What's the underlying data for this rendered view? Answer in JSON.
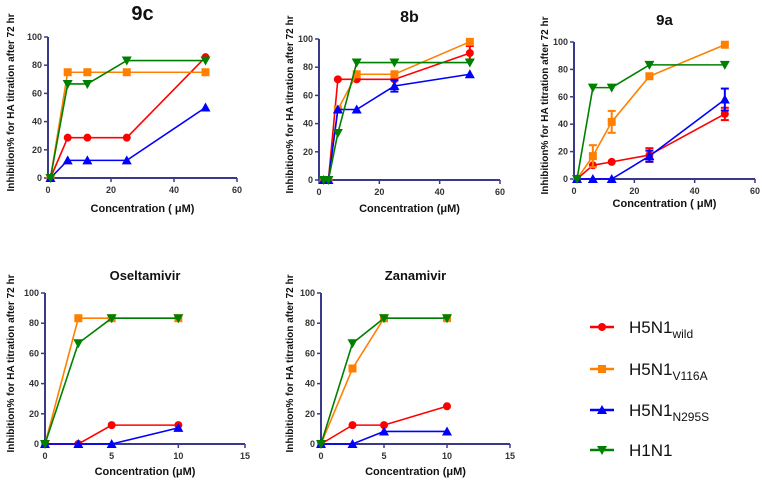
{
  "chart_data": {
    "type": "line",
    "legend_placement": "bottom-right",
    "legend": [
      {
        "name": "H5N1",
        "sub": "wild",
        "color": "#ff0000",
        "marker": "circle"
      },
      {
        "name": "H5N1",
        "sub": "V116A",
        "color": "#ff8000",
        "marker": "square"
      },
      {
        "name": "H5N1",
        "sub": "N295S",
        "color": "#0000ff",
        "marker": "triangle-up"
      },
      {
        "name": "H1N1",
        "sub": "",
        "color": "#008000",
        "marker": "triangle-down"
      }
    ],
    "panels": [
      {
        "title": "9c",
        "xlabel": "Concentration ( μM)",
        "ylabel": "Inhibition% for HA titration after 72 hr",
        "xlim": [
          0,
          60
        ],
        "ylim": [
          0,
          100
        ],
        "xticks": [
          0,
          20,
          40,
          60
        ],
        "yticks": [
          0,
          20,
          40,
          60,
          80,
          100
        ],
        "x": [
          0.78,
          6.25,
          12.5,
          25,
          50
        ],
        "series": [
          {
            "name": "H5N1 wild",
            "values": [
              0,
              28.6,
              28.6,
              28.6,
              85.7
            ]
          },
          {
            "name": "H5N1 V116A",
            "values": [
              0,
              75,
              75,
              75,
              75
            ]
          },
          {
            "name": "H5N1 N295S",
            "values": [
              0,
              12.5,
              12.5,
              12.5,
              50
            ]
          },
          {
            "name": "H1N1",
            "values": [
              0,
              66.7,
              66.7,
              83.3,
              83.3
            ]
          }
        ]
      },
      {
        "title": "8b",
        "xlabel": "Concentration (μM)",
        "ylabel": "Inhibition% for HA titration after 72 hr",
        "xlim": [
          0,
          60
        ],
        "ylim": [
          0,
          100
        ],
        "xticks": [
          0,
          20,
          40,
          60
        ],
        "yticks": [
          0,
          20,
          40,
          60,
          80,
          100
        ],
        "x": [
          1.56,
          3.125,
          6.25,
          12.5,
          25,
          50
        ],
        "series": [
          {
            "name": "H5N1 wild",
            "values": [
              0,
              0,
              71.4,
              71.4,
              71.4,
              90
            ],
            "errors": [
              0,
              0,
              0,
              0,
              0,
              5
            ]
          },
          {
            "name": "H5N1 V116A",
            "values": [
              0,
              0,
              50,
              75,
              75,
              98
            ]
          },
          {
            "name": "H5N1 N295S",
            "values": [
              0,
              0,
              50,
              50,
              66.7,
              75
            ],
            "errors": [
              0,
              0,
              0,
              0,
              4,
              0
            ]
          },
          {
            "name": "H1N1",
            "values": [
              0,
              0,
              33.3,
              83.3,
              83.3,
              83.3
            ]
          }
        ]
      },
      {
        "title": "9a",
        "xlabel": "Concentration ( μM)",
        "ylabel": "Inhibition% for HA titration after 72 hr",
        "xlim": [
          0,
          60
        ],
        "ylim": [
          0,
          100
        ],
        "xticks": [
          0,
          20,
          40,
          60
        ],
        "yticks": [
          0,
          20,
          40,
          60,
          80,
          100
        ],
        "x": [
          1,
          6.25,
          12.5,
          25,
          50
        ],
        "series": [
          {
            "name": "H5N1 wild",
            "values": [
              0,
              10,
              12.5,
              17.5,
              47.5
            ],
            "errors": [
              0,
              0,
              0,
              5,
              4.5
            ]
          },
          {
            "name": "H5N1 V116A",
            "values": [
              0,
              16.7,
              41.7,
              75,
              98
            ],
            "errors": [
              0,
              8,
              8,
              0,
              0
            ]
          },
          {
            "name": "H5N1 N295S",
            "values": [
              0,
              0,
              0,
              16.7,
              58
            ],
            "errors": [
              0,
              0,
              0,
              4,
              8
            ]
          },
          {
            "name": "H1N1",
            "values": [
              0,
              66.7,
              66.7,
              83.3,
              83.3
            ]
          }
        ]
      },
      {
        "title": "Oseltamivir",
        "xlabel": "Concentration (μM)",
        "ylabel": "Inhibition% for HA titration after 72 hr",
        "xlim": [
          0,
          15
        ],
        "ylim": [
          0,
          100
        ],
        "xticks": [
          0,
          5,
          10,
          15
        ],
        "yticks": [
          0,
          20,
          40,
          60,
          80,
          100
        ],
        "x": [
          0,
          2.5,
          5,
          10
        ],
        "series": [
          {
            "name": "H5N1 wild",
            "values": [
              0,
              0,
              12.5,
              12.5
            ]
          },
          {
            "name": "H5N1 V116A",
            "values": [
              0,
              83.3,
              83.3,
              83.3
            ]
          },
          {
            "name": "H5N1 N295S",
            "values": [
              0,
              0,
              0,
              10.7
            ]
          },
          {
            "name": "H1N1",
            "values": [
              0,
              66.7,
              83.3,
              83.3
            ]
          }
        ]
      },
      {
        "title": "Zanamivir",
        "xlabel": "Concentration (μM)",
        "ylabel": "Inhibition% for HA titration after 72 hr",
        "xlim": [
          0,
          15
        ],
        "ylim": [
          0,
          100
        ],
        "xticks": [
          0,
          5,
          10,
          15
        ],
        "yticks": [
          0,
          20,
          40,
          60,
          80,
          100
        ],
        "x": [
          0,
          2.5,
          5,
          10
        ],
        "series": [
          {
            "name": "H5N1 wild",
            "values": [
              0,
              12.5,
              12.5,
              25
            ]
          },
          {
            "name": "H5N1 V116A",
            "values": [
              0,
              50,
              83.3,
              83.3
            ]
          },
          {
            "name": "H5N1 N295S",
            "values": [
              0,
              0,
              8.3,
              8.3
            ]
          },
          {
            "name": "H1N1",
            "values": [
              0,
              66.7,
              83.3,
              83.3
            ]
          }
        ]
      }
    ]
  }
}
